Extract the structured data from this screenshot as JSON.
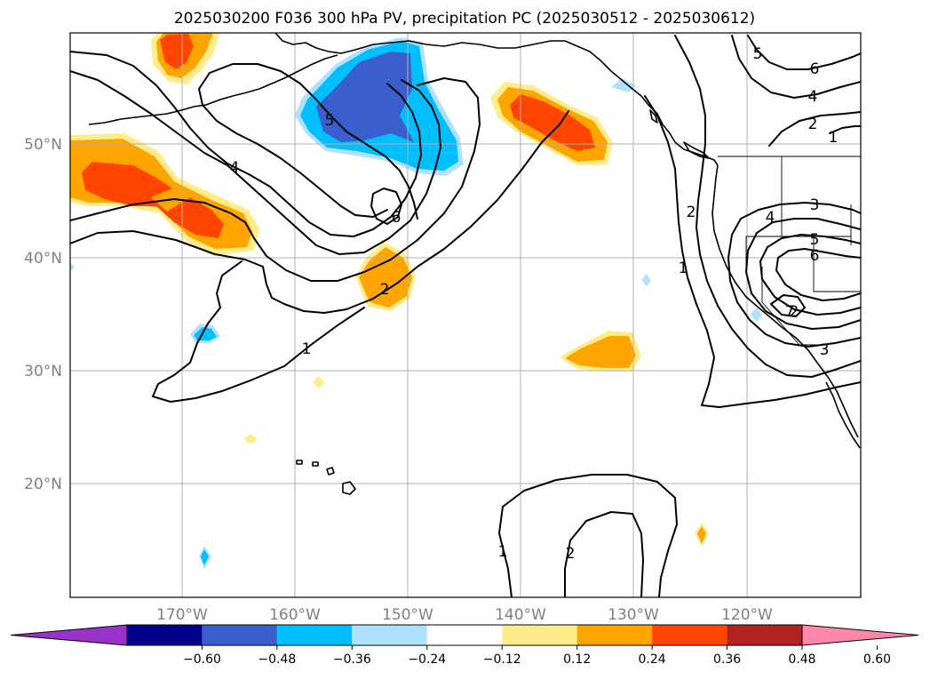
{
  "title": "2025030200 F036 300 hPa PV, precipitation PC (2025030512 - 2025030612)",
  "lon_labels": [
    "170°W",
    "160°W",
    "150°W",
    "140°W",
    "130°W",
    "120°W"
  ],
  "lat_labels": [
    "50°N",
    "40°N",
    "30°N",
    "20°N"
  ],
  "contour_labels": [
    "1",
    "1",
    "1",
    "1",
    "2",
    "2",
    "2",
    "2",
    "2",
    "3",
    "3",
    "4",
    "4",
    "4",
    "5",
    "5",
    "5",
    "6",
    "6",
    "6",
    "7"
  ],
  "colorbar": {
    "ticks": [
      "−0.60",
      "−0.48",
      "−0.36",
      "−0.24",
      "−0.12",
      "0.12",
      "0.24",
      "0.36",
      "0.48",
      "0.60"
    ],
    "colors": [
      "#9933cc",
      "#00008b",
      "#3a5fcd",
      "#00bfff",
      "#b0e2ff",
      "#ffffff",
      "#ffec8b",
      "#ffa500",
      "#ff4500",
      "#b22222",
      "#ff88aa"
    ]
  },
  "colors": {
    "pc_light_pos": "#ffec8b",
    "pc_mid_pos": "#ffa500",
    "pc_strong_pos": "#ff4500",
    "pc_light_neg": "#b0e2ff",
    "pc_mid_neg": "#00bfff",
    "pc_strong_neg": "#3a5fcd"
  }
}
